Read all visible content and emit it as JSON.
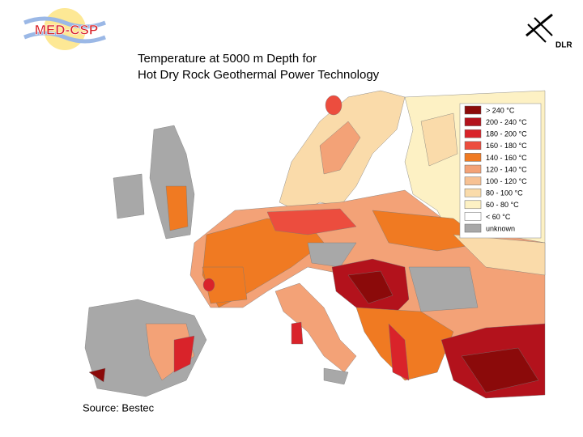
{
  "header": {
    "logo_left": "MED-CSP",
    "logo_right": "DLR",
    "title_line1": "Temperature at 5000 m Depth for",
    "title_line2": "Hot Dry Rock Geothermal Power Technology"
  },
  "legend": [
    {
      "label": "> 240 °C",
      "color": "#8b0a0a"
    },
    {
      "label": "200 - 240 °C",
      "color": "#b3121c"
    },
    {
      "label": "180 - 200 °C",
      "color": "#d9232a"
    },
    {
      "label": "160 - 180 °C",
      "color": "#ec4d3e"
    },
    {
      "label": "140 - 160 °C",
      "color": "#f07a22"
    },
    {
      "label": "120 - 140 °C",
      "color": "#f3a277"
    },
    {
      "label": "100 - 120 °C",
      "color": "#f7c193"
    },
    {
      "label": "80 - 100 °C",
      "color": "#fadbaa"
    },
    {
      "label": "60 - 80 °C",
      "color": "#fdf1c4"
    },
    {
      "label": "< 60 °C",
      "color": "#ffffff"
    },
    {
      "label": "unknown",
      "color": "#a8a8a8"
    }
  ],
  "footer": {
    "source": "Source: Bestec"
  }
}
